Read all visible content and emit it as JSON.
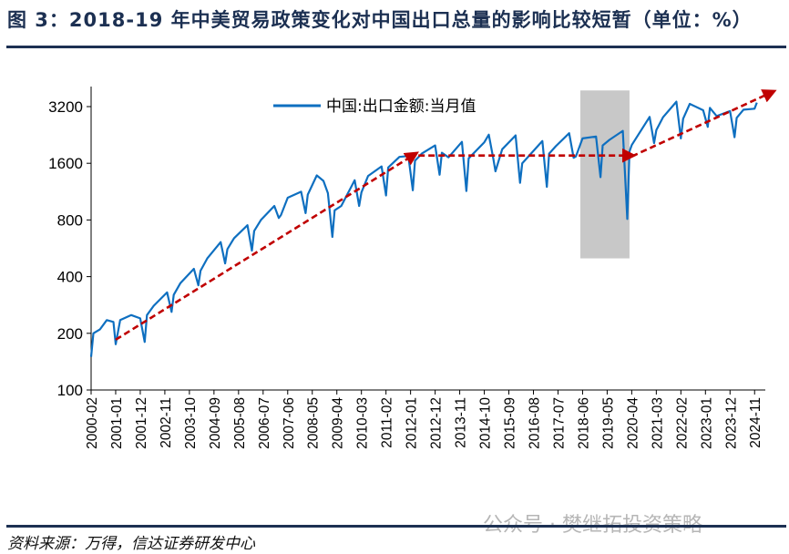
{
  "title": "图 3：2018-19 年中美贸易政策变化对中国出口总量的影响比较短暂（单位：%）",
  "source": "资料来源：万得，信达证券研发中心",
  "watermark": "公众号 · 樊继拓投资策略",
  "chart_data": {
    "type": "line",
    "title": "2018-19 年中美贸易政策变化对中国出口总量的影响比较短暂（单位：%）",
    "yscale": "log2",
    "ylim": [
      100,
      3200
    ],
    "yticks": [
      100,
      200,
      400,
      800,
      1600,
      3200
    ],
    "xrange": [
      "2000-02",
      "2024-12"
    ],
    "xticks": [
      "2000-02",
      "2001-01",
      "2001-12",
      "2002-11",
      "2003-10",
      "2004-09",
      "2005-08",
      "2006-07",
      "2007-06",
      "2008-05",
      "2009-04",
      "2010-03",
      "2011-02",
      "2012-01",
      "2012-12",
      "2013-11",
      "2014-10",
      "2015-09",
      "2016-08",
      "2017-07",
      "2018-06",
      "2019-05",
      "2020-04",
      "2021-03",
      "2022-02",
      "2023-01",
      "2023-12",
      "2024-11"
    ],
    "legend": {
      "position": "top-center",
      "entries": [
        "中国:出口金额:当月值"
      ]
    },
    "colors": {
      "series": "#0e6fc0",
      "arrow": "#c00000",
      "shade": "#c8c8c8",
      "axis": "#000"
    },
    "series": [
      {
        "name": "中国:出口金额:当月值",
        "points": [
          [
            "2000-02",
            150
          ],
          [
            "2000-03",
            200
          ],
          [
            "2000-06",
            210
          ],
          [
            "2000-09",
            235
          ],
          [
            "2000-12",
            230
          ],
          [
            "2001-01",
            175
          ],
          [
            "2001-03",
            235
          ],
          [
            "2001-08",
            250
          ],
          [
            "2001-12",
            240
          ],
          [
            "2002-02",
            180
          ],
          [
            "2002-03",
            250
          ],
          [
            "2002-06",
            280
          ],
          [
            "2002-12",
            330
          ],
          [
            "2003-02",
            260
          ],
          [
            "2003-03",
            320
          ],
          [
            "2003-06",
            370
          ],
          [
            "2003-12",
            440
          ],
          [
            "2004-02",
            360
          ],
          [
            "2004-03",
            430
          ],
          [
            "2004-06",
            500
          ],
          [
            "2004-12",
            610
          ],
          [
            "2005-02",
            470
          ],
          [
            "2005-03",
            560
          ],
          [
            "2005-06",
            640
          ],
          [
            "2005-12",
            750
          ],
          [
            "2006-02",
            550
          ],
          [
            "2006-03",
            700
          ],
          [
            "2006-06",
            800
          ],
          [
            "2006-12",
            950
          ],
          [
            "2007-02",
            820
          ],
          [
            "2007-03",
            850
          ],
          [
            "2007-06",
            1050
          ],
          [
            "2007-12",
            1130
          ],
          [
            "2008-02",
            870
          ],
          [
            "2008-03",
            1090
          ],
          [
            "2008-07",
            1380
          ],
          [
            "2008-10",
            1290
          ],
          [
            "2008-12",
            1110
          ],
          [
            "2009-02",
            650
          ],
          [
            "2009-03",
            900
          ],
          [
            "2009-06",
            950
          ],
          [
            "2009-12",
            1300
          ],
          [
            "2010-02",
            950
          ],
          [
            "2010-03",
            1120
          ],
          [
            "2010-06",
            1370
          ],
          [
            "2010-12",
            1540
          ],
          [
            "2011-02",
            1080
          ],
          [
            "2011-03",
            1520
          ],
          [
            "2011-08",
            1730
          ],
          [
            "2011-12",
            1750
          ],
          [
            "2012-02",
            1150
          ],
          [
            "2012-03",
            1650
          ],
          [
            "2012-06",
            1800
          ],
          [
            "2012-12",
            1990
          ],
          [
            "2013-02",
            1390
          ],
          [
            "2013-03",
            1820
          ],
          [
            "2013-06",
            1720
          ],
          [
            "2013-12",
            2080
          ],
          [
            "2014-02",
            1140
          ],
          [
            "2014-03",
            1700
          ],
          [
            "2014-10",
            2070
          ],
          [
            "2014-12",
            2270
          ],
          [
            "2015-02",
            1700
          ],
          [
            "2015-03",
            1450
          ],
          [
            "2015-06",
            1900
          ],
          [
            "2015-12",
            2250
          ],
          [
            "2016-02",
            1260
          ],
          [
            "2016-03",
            1600
          ],
          [
            "2016-12",
            2100
          ],
          [
            "2017-02",
            1200
          ],
          [
            "2017-03",
            1800
          ],
          [
            "2017-06",
            1970
          ],
          [
            "2017-12",
            2310
          ],
          [
            "2018-02",
            1710
          ],
          [
            "2018-03",
            1740
          ],
          [
            "2018-06",
            2170
          ],
          [
            "2018-12",
            2220
          ],
          [
            "2019-02",
            1350
          ],
          [
            "2019-03",
            1990
          ],
          [
            "2019-06",
            2130
          ],
          [
            "2019-12",
            2380
          ],
          [
            "2020-02",
            810
          ],
          [
            "2020-03",
            1850
          ],
          [
            "2020-04",
            2000
          ],
          [
            "2020-12",
            2820
          ],
          [
            "2021-02",
            2050
          ],
          [
            "2021-03",
            2400
          ],
          [
            "2021-06",
            2810
          ],
          [
            "2021-12",
            3400
          ],
          [
            "2022-02",
            2170
          ],
          [
            "2022-03",
            2760
          ],
          [
            "2022-06",
            3310
          ],
          [
            "2022-12",
            3060
          ],
          [
            "2023-02",
            2500
          ],
          [
            "2023-03",
            3150
          ],
          [
            "2023-06",
            2850
          ],
          [
            "2023-12",
            3030
          ],
          [
            "2024-02",
            2200
          ],
          [
            "2024-03",
            2790
          ],
          [
            "2024-06",
            3080
          ],
          [
            "2024-11",
            3120
          ],
          [
            "2024-12",
            3360
          ]
        ]
      }
    ],
    "shaded_region": {
      "x": [
        "2018-05",
        "2020-03"
      ],
      "y": [
        500,
        3900
      ]
    },
    "trend_arrows": [
      {
        "from": [
          "2001-01",
          185
        ],
        "to": [
          "2012-03",
          1790
        ]
      },
      {
        "from": [
          "2011-12",
          1760
        ],
        "to": [
          "2020-04",
          1760
        ]
      },
      {
        "from": [
          "2020-04",
          1740
        ],
        "to": [
          "2025-07",
          3830
        ]
      }
    ]
  }
}
